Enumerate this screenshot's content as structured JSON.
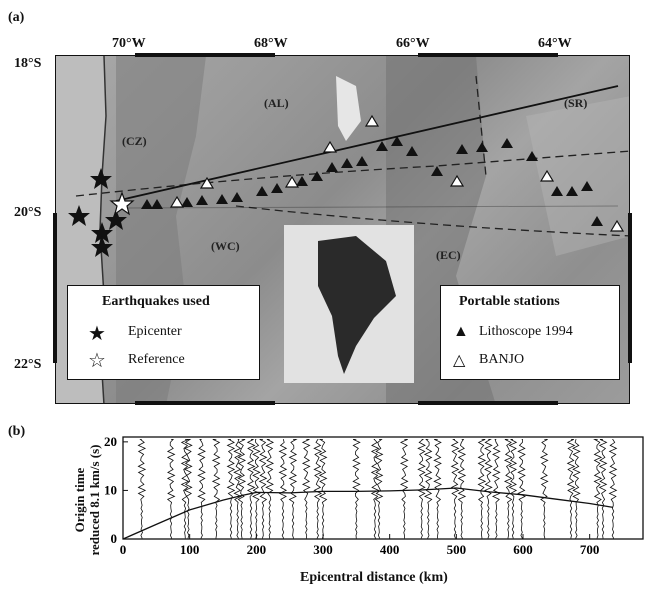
{
  "figure": {
    "panel_a_label": "(a)",
    "panel_b_label": "(b)",
    "longitudes": [
      "70°W",
      "68°W",
      "66°W",
      "64°W"
    ],
    "latitudes": [
      "18°S",
      "20°S",
      "22°S"
    ],
    "regions": [
      "(AL)",
      "(CZ)",
      "(WC)",
      "(EC)",
      "(SR)"
    ],
    "legend_earthquakes": {
      "title": "Earthquakes used",
      "items": [
        {
          "symbol": "filled-star",
          "label": "Epicenter"
        },
        {
          "symbol": "open-star",
          "label": "Reference"
        }
      ]
    },
    "legend_stations": {
      "title": "Portable stations",
      "items": [
        {
          "symbol": "filled-triangle",
          "label": "Lithoscope 1994"
        },
        {
          "symbol": "open-triangle",
          "label": "BANJO"
        }
      ]
    },
    "record_section": {
      "ylabel_line1": "Origin time",
      "ylabel_line2": "reduced 8.1 km/s (s)",
      "xlabel": "Epicentral distance (km)",
      "x_ticks": [
        "0",
        "100",
        "200",
        "300",
        "400",
        "500",
        "600",
        "700"
      ],
      "y_ticks": [
        "0",
        "10",
        "20"
      ]
    }
  },
  "chart_data": {
    "type": "line",
    "title": "",
    "xlabel": "Epicentral distance (km)",
    "ylabel": "Origin time reduced 8.1 km/s (s)",
    "xlim": [
      0,
      780
    ],
    "ylim": [
      0,
      21
    ],
    "trace_distances_km": [
      28,
      72,
      93,
      98,
      118,
      140,
      162,
      172,
      178,
      192,
      200,
      210,
      220,
      240,
      255,
      275,
      292,
      300,
      350,
      378,
      384,
      422,
      448,
      458,
      472,
      498,
      508,
      538,
      548,
      560,
      578,
      585,
      598,
      632,
      672,
      680,
      712,
      720,
      735
    ],
    "first_arrival_curve": {
      "x": [
        0,
        50,
        100,
        150,
        180,
        200,
        250,
        300,
        350,
        400,
        450,
        500,
        550,
        600,
        650,
        700,
        735
      ],
      "y": [
        0,
        3,
        6,
        8,
        9,
        9.6,
        9.5,
        9.8,
        9.8,
        9.9,
        10.1,
        10.5,
        9.7,
        9.1,
        8.2,
        7.3,
        6.5
      ]
    }
  }
}
